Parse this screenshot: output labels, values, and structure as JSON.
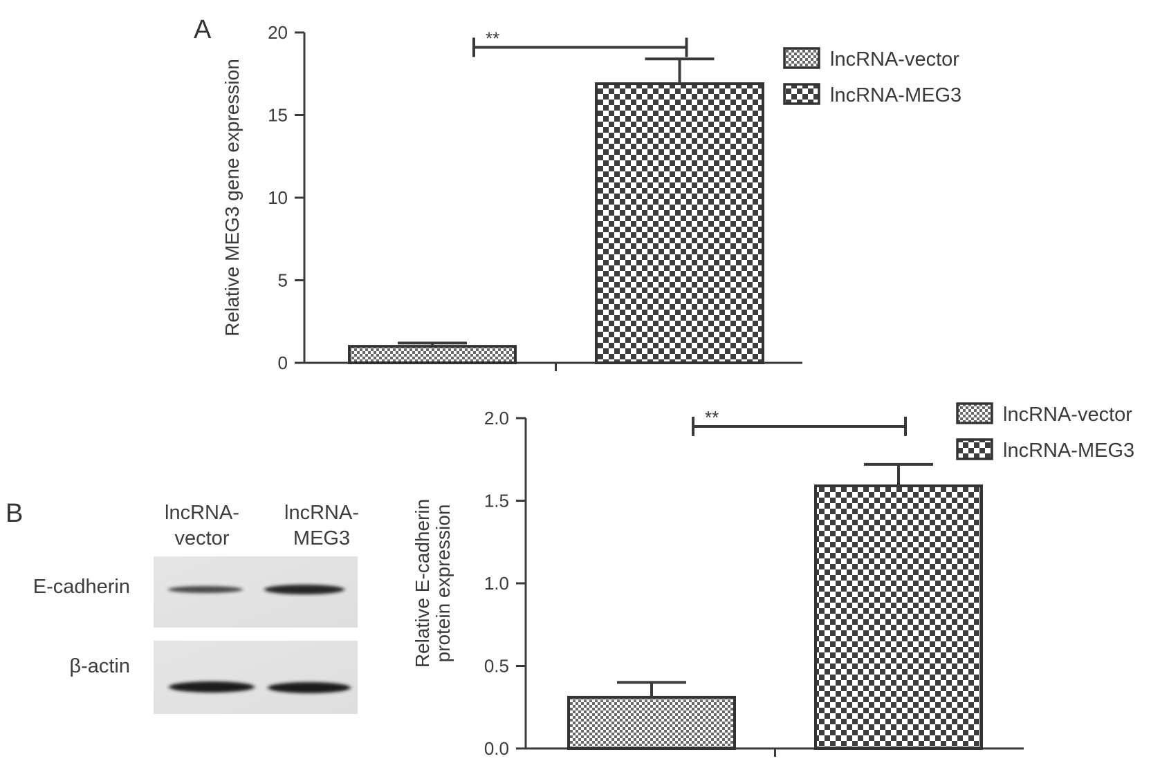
{
  "panels": {
    "a_label": "A",
    "b_label": "B"
  },
  "western_blot": {
    "lanes": [
      {
        "line1": "lncRNA-",
        "line2": "vector"
      },
      {
        "line1": "lncRNA-",
        "line2": "MEG3"
      }
    ],
    "rows": [
      {
        "label": "E-cadherin",
        "band_intensity": [
          0.6,
          0.9
        ]
      },
      {
        "label": "β-actin",
        "band_intensity": [
          1.0,
          1.0
        ]
      }
    ]
  },
  "chart_data": [
    {
      "type": "bar",
      "panel": "A",
      "title": "",
      "xlabel": "",
      "ylabel": "Relative MEG3 gene expression",
      "ylim": [
        0,
        20
      ],
      "yticks": [
        0,
        5,
        10,
        15,
        20
      ],
      "ytick_labels": [
        "0",
        "5",
        "10",
        "15",
        "20"
      ],
      "categories": [
        "lncRNA-vector",
        "lncRNA-MEG3"
      ],
      "values": [
        1.0,
        16.9
      ],
      "errors": [
        0.2,
        1.5
      ],
      "significance": {
        "label": "**",
        "between": [
          0,
          1
        ],
        "y": 19.1
      },
      "legend": {
        "position": "top-right",
        "entries": [
          "lncRNA-vector",
          "lncRNA-MEG3"
        ]
      },
      "grid": false
    },
    {
      "type": "bar",
      "panel": "B",
      "title": "",
      "xlabel": "",
      "ylabel_lines": [
        "Relative E-cadherin",
        "protein expression"
      ],
      "ylim": [
        0,
        2.0
      ],
      "yticks": [
        0,
        0.5,
        1.0,
        1.5,
        2.0
      ],
      "ytick_labels": [
        "0.0",
        "0.5",
        "1.0",
        "1.5",
        "2.0"
      ],
      "categories": [
        "lncRNA-vector",
        "lncRNA-MEG3"
      ],
      "values": [
        0.31,
        1.59
      ],
      "errors": [
        0.09,
        0.13
      ],
      "significance": {
        "label": "**",
        "between": [
          0,
          1
        ],
        "y": 1.95
      },
      "legend": {
        "position": "top-right",
        "entries": [
          "lncRNA-vector",
          "lncRNA-MEG3"
        ]
      },
      "grid": false
    }
  ],
  "colors": {
    "axis": "#3a3a3a",
    "bar_border": "#333333",
    "pattern_dark": "#4a4a4a",
    "pattern_light": "#ffffff"
  }
}
